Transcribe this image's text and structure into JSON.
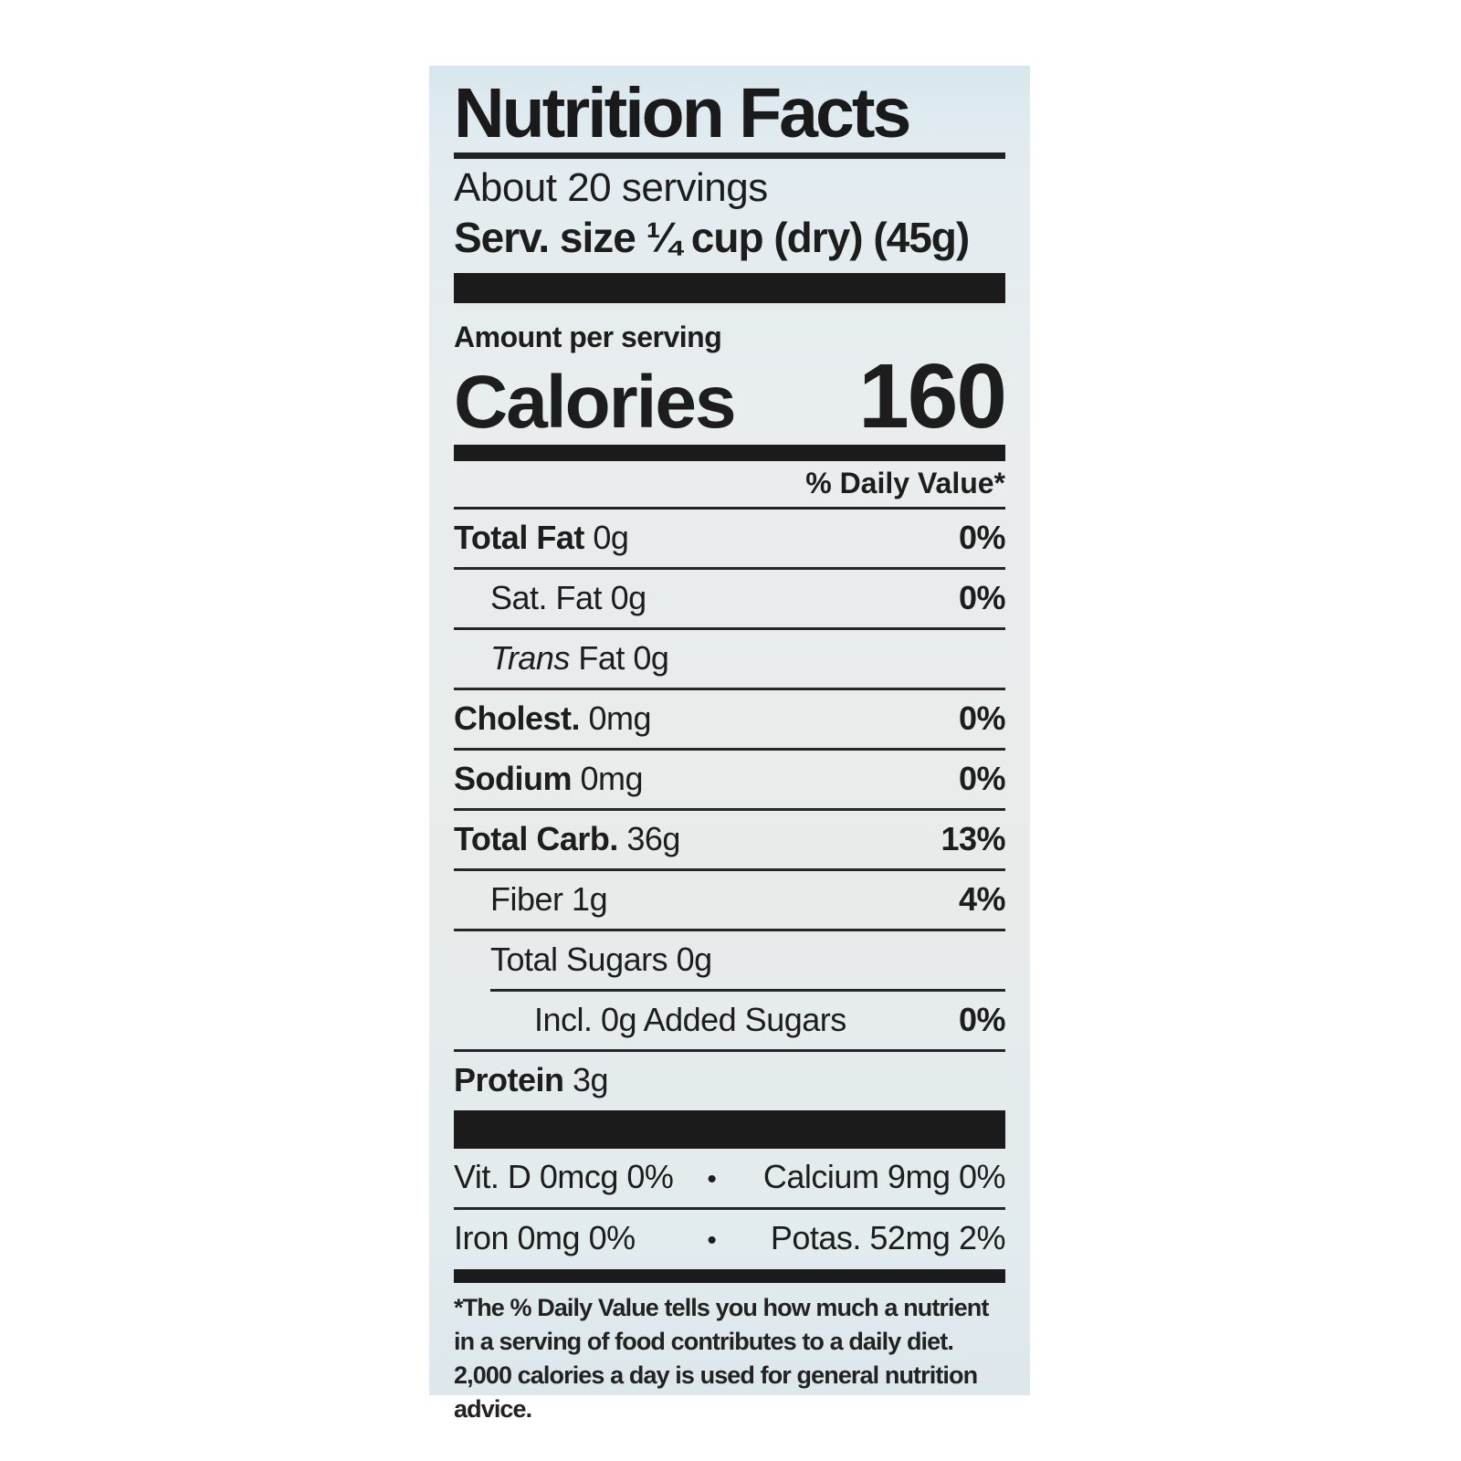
{
  "label": {
    "title": "Nutrition Facts",
    "servings": "About 20 servings",
    "serving_size": "Serv. size ¼ cup (dry) (45g)",
    "amount_per": "Amount per serving",
    "calories_label": "Calories",
    "calories_value": "160",
    "dv_header": "% Daily Value*",
    "rows": [
      {
        "name": "Total Fat",
        "amount": "0g",
        "dv": "0%"
      },
      {
        "name": "Sat. Fat",
        "amount": "0g",
        "dv": "0%"
      },
      {
        "name_italic": "Trans",
        "name": " Fat",
        "amount": "0g",
        "dv": ""
      },
      {
        "name": "Cholest.",
        "amount": "0mg",
        "dv": "0%"
      },
      {
        "name": "Sodium",
        "amount": "0mg",
        "dv": "0%"
      },
      {
        "name": "Total Carb.",
        "amount": "36g",
        "dv": "13%"
      },
      {
        "name": "Fiber",
        "amount": "1g",
        "dv": "4%"
      },
      {
        "name": "Total Sugars",
        "amount": "0g",
        "dv": ""
      },
      {
        "name": "Incl. 0g Added Sugars",
        "amount": "",
        "dv": "0%"
      },
      {
        "name": "Protein",
        "amount": "3g",
        "dv": ""
      }
    ],
    "vitamins": [
      {
        "left": "Vit. D 0mcg 0%",
        "bullet": "•",
        "right": "Calcium 9mg 0%"
      },
      {
        "left": "Iron 0mg 0%",
        "bullet": "•",
        "right": "Potas. 52mg 2%"
      }
    ],
    "footnote": "*The % Daily Value tells you how much a nutrient in a serving of food contributes to a daily diet. 2,000 calories a day is used for general nutrition advice."
  },
  "colors": {
    "label_background": "#e6edef",
    "bar_color": "#1b1b1b",
    "text_color": "#1d1d1d"
  }
}
